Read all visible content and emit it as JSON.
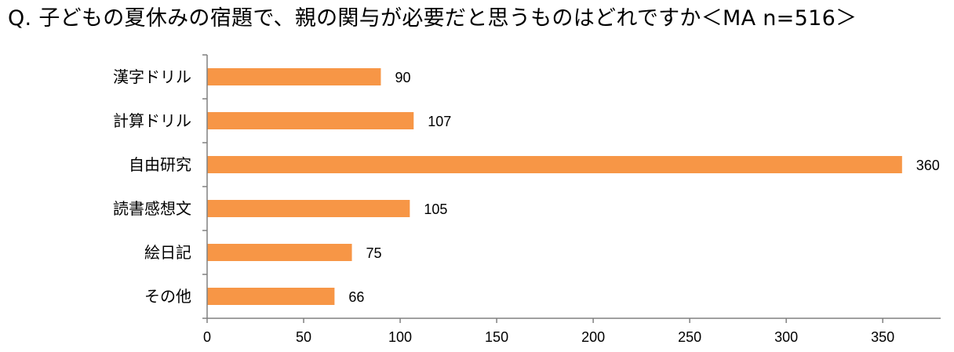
{
  "chart_data": {
    "type": "bar",
    "orientation": "horizontal",
    "title": "Q. 子どもの夏休みの宿題で、親の関与が必要だと思うものはどれですか＜MA n=516＞",
    "categories": [
      "漢字ドリル",
      "計算ドリル",
      "自由研究",
      "読書感想文",
      "絵日記",
      "その他"
    ],
    "values": [
      90,
      107,
      360,
      105,
      75,
      66
    ],
    "xlim": [
      0,
      380
    ],
    "xticks": [
      0,
      50,
      100,
      150,
      200,
      250,
      300,
      350
    ],
    "xlabel": "",
    "ylabel": "",
    "grid": false,
    "bar_color": "#F79646"
  }
}
